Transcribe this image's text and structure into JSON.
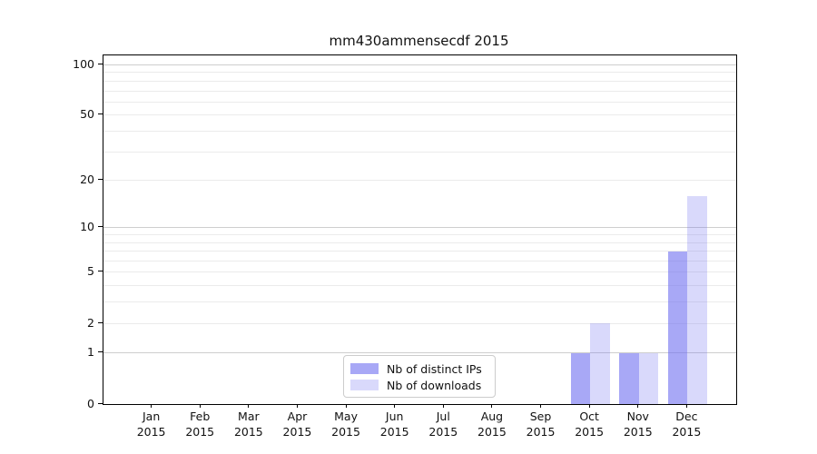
{
  "chart_data": {
    "type": "bar",
    "title": "mm430ammensecdf 2015",
    "x_tick_year": "2015",
    "categories": [
      "Jan",
      "Feb",
      "Mar",
      "Apr",
      "May",
      "Jun",
      "Jul",
      "Aug",
      "Sep",
      "Oct",
      "Nov",
      "Dec"
    ],
    "series": [
      {
        "name": "Nb of distinct IPs",
        "color": "rgba(115,115,240,0.62)",
        "values": [
          0,
          0,
          0,
          0,
          0,
          0,
          0,
          0,
          0,
          1,
          1,
          7
        ]
      },
      {
        "name": "Nb of downloads",
        "color": "rgba(115,115,240,0.27)",
        "values": [
          0,
          0,
          0,
          0,
          0,
          0,
          0,
          0,
          0,
          2,
          1,
          16
        ]
      }
    ],
    "xlabel": "",
    "ylabel": "",
    "yscale": "log1p",
    "ylim": [
      0,
      114
    ],
    "y_ticks": [
      0,
      1,
      2,
      5,
      10,
      20,
      50,
      100
    ],
    "y_tick_labels": [
      "0",
      "1",
      "2",
      "5",
      "10",
      "20",
      "50",
      "100"
    ],
    "gridlines": {
      "major": [
        1,
        10,
        100
      ],
      "minor": [
        2,
        3,
        4,
        5,
        6,
        7,
        8,
        9,
        20,
        30,
        40,
        50,
        60,
        70,
        80,
        90
      ]
    },
    "grid": "horizontal major+minor, on",
    "legend_position": "lower center",
    "colors": {
      "axis": "#000000",
      "major_grid": "#cecece",
      "minor_grid": "#ebebeb",
      "bar_distinct_ips": "rgba(115,115,240,0.62)",
      "bar_downloads": "rgba(115,115,240,0.27)"
    }
  }
}
